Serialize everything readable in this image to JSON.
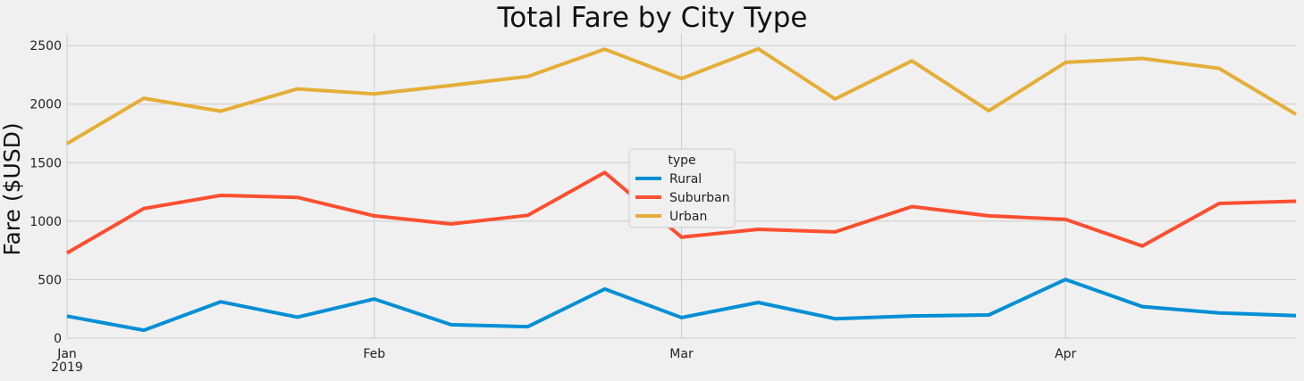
{
  "chart_data": {
    "type": "line",
    "title": "Total Fare by City Type",
    "xlabel": "",
    "ylabel": "Fare ($USD)",
    "ylim": [
      0,
      2600
    ],
    "yticks": [
      0,
      500,
      1000,
      1500,
      2000,
      2500
    ],
    "x": [
      "2019-01-06",
      "2019-01-13",
      "2019-01-20",
      "2019-01-27",
      "2019-02-03",
      "2019-02-10",
      "2019-02-17",
      "2019-02-24",
      "2019-03-03",
      "2019-03-10",
      "2019-03-17",
      "2019-03-24",
      "2019-03-31",
      "2019-04-07",
      "2019-04-14",
      "2019-04-21",
      "2019-04-28"
    ],
    "xlim": [
      "2019-01-06",
      "2019-04-28"
    ],
    "xtick_labels": [
      {
        "date": "2019-01-06",
        "label": "Jan",
        "sublabel": "2019"
      },
      {
        "date": "2019-02-03",
        "label": "Feb",
        "sublabel": ""
      },
      {
        "date": "2019-03-03",
        "label": "Mar",
        "sublabel": ""
      },
      {
        "date": "2019-04-07",
        "label": "Apr",
        "sublabel": ""
      }
    ],
    "legend": {
      "title": "type",
      "placement": "center"
    },
    "grid": true,
    "series": [
      {
        "name": "Rural",
        "color": "#008fd5",
        "values": [
          188,
          68,
          311,
          180,
          335,
          115,
          98,
          420,
          176,
          305,
          166,
          190,
          198,
          502,
          270,
          216,
          193
        ]
      },
      {
        "name": "Suburban",
        "color": "#fc4f30",
        "values": [
          728,
          1108,
          1220,
          1203,
          1045,
          976,
          1050,
          1416,
          864,
          930,
          908,
          1125,
          1045,
          1015,
          788,
          1151,
          1170
        ]
      },
      {
        "name": "Urban",
        "color": "#e5ae38",
        "values": [
          1662,
          2050,
          1940,
          2130,
          2087,
          2160,
          2236,
          2470,
          2218,
          2473,
          2044,
          2370,
          1943,
          2357,
          2390,
          2305,
          1913
        ]
      }
    ]
  }
}
